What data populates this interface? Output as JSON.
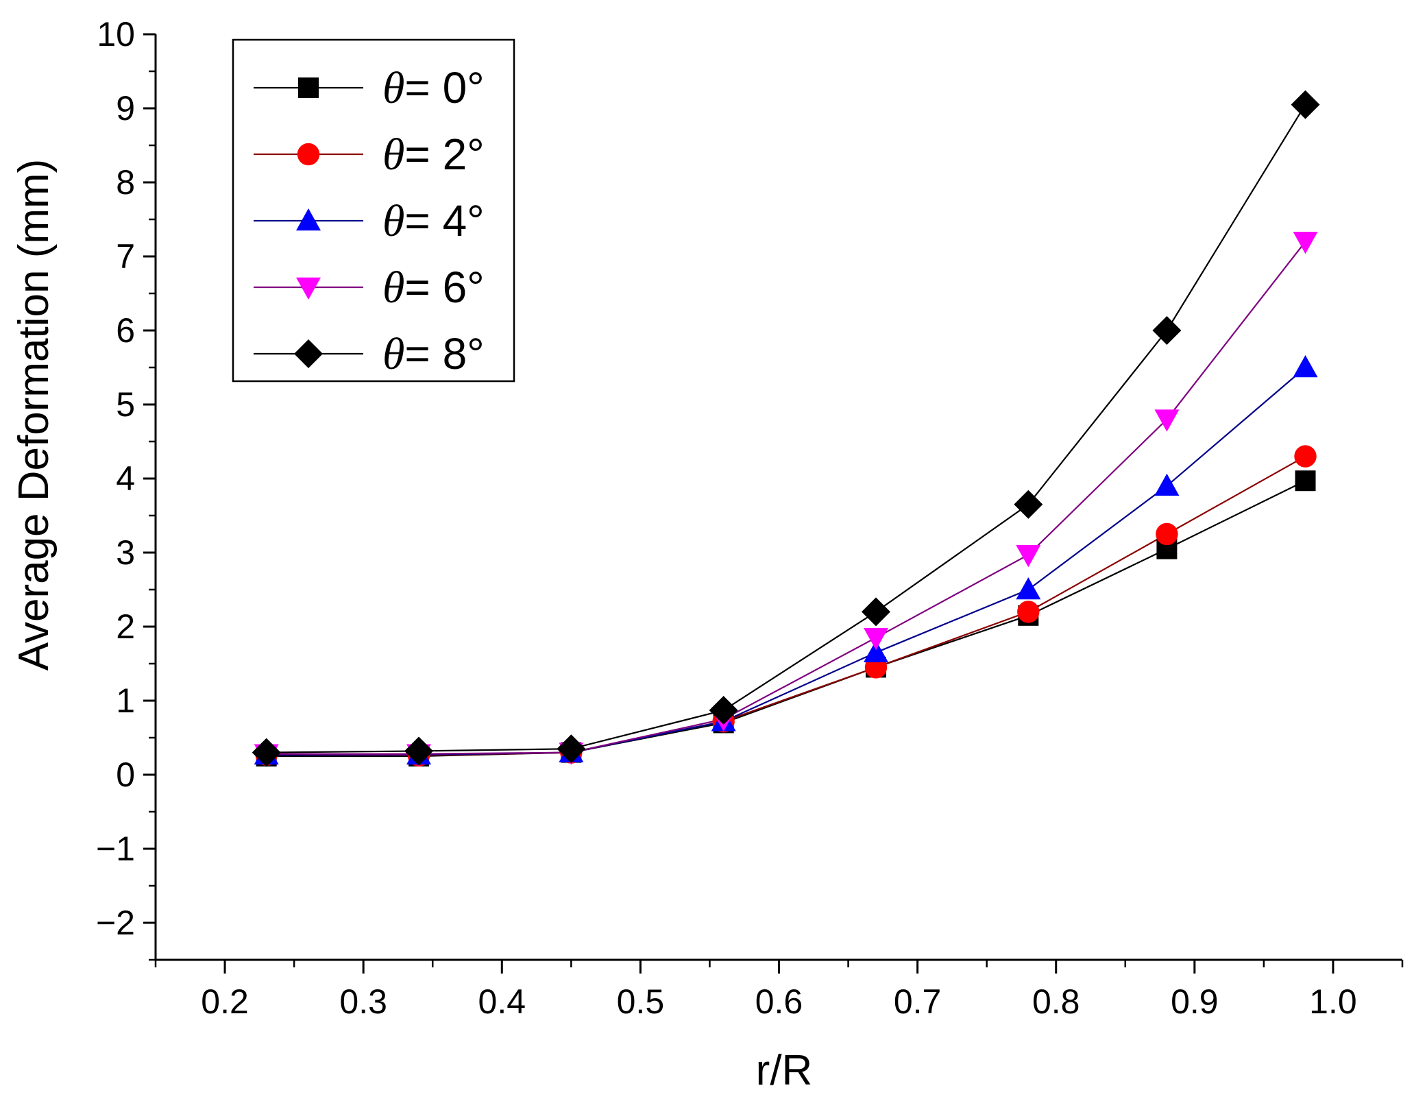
{
  "chart_data": {
    "type": "line",
    "title": "",
    "xlabel": "r/R",
    "ylabel": "Average Deformation (mm)",
    "xlim": [
      0.15,
      1.05
    ],
    "ylim": [
      -2.5,
      10
    ],
    "x_ticks": [
      0.2,
      0.3,
      0.4,
      0.5,
      0.6,
      0.7,
      0.8,
      0.9,
      1.0
    ],
    "x_tick_labels": [
      "0.2",
      "0.3",
      "0.4",
      "0.5",
      "0.6",
      "0.7",
      "0.8",
      "0.9",
      "1.0"
    ],
    "y_ticks": [
      -2,
      -1,
      0,
      1,
      2,
      3,
      4,
      5,
      6,
      7,
      8,
      9,
      10
    ],
    "y_tick_labels": [
      "−2",
      "−1",
      "0",
      "1",
      "2",
      "3",
      "4",
      "5",
      "6",
      "7",
      "8",
      "9",
      "10"
    ],
    "grid": false,
    "legend_position": "top-left",
    "x": [
      0.23,
      0.34,
      0.45,
      0.56,
      0.67,
      0.78,
      0.88,
      0.98
    ],
    "series": [
      {
        "name": "θ= 0°",
        "theta_symbol": "θ",
        "label_rest": "= 0°",
        "marker": "square",
        "color": "#000000",
        "line_color": "#000000",
        "values": [
          0.25,
          0.25,
          0.3,
          0.7,
          1.45,
          2.15,
          3.05,
          3.97
        ]
      },
      {
        "name": "θ= 2°",
        "theta_symbol": "θ",
        "label_rest": "= 2°",
        "marker": "circle",
        "color": "#ff0000",
        "line_color": "#8b0000",
        "values": [
          0.27,
          0.26,
          0.3,
          0.72,
          1.45,
          2.2,
          3.25,
          4.3
        ]
      },
      {
        "name": "θ= 4°",
        "theta_symbol": "θ",
        "label_rest": "= 4°",
        "marker": "triangle-up",
        "color": "#0000ff",
        "line_color": "#00008b",
        "values": [
          0.27,
          0.27,
          0.3,
          0.72,
          1.65,
          2.5,
          3.9,
          5.5
        ]
      },
      {
        "name": "θ= 6°",
        "theta_symbol": "θ",
        "label_rest": "= 6°",
        "marker": "triangle-down",
        "color": "#ff00ff",
        "line_color": "#800080",
        "values": [
          0.28,
          0.28,
          0.3,
          0.75,
          1.85,
          2.97,
          4.8,
          7.2
        ]
      },
      {
        "name": "θ= 8°",
        "theta_symbol": "θ",
        "label_rest": "= 8°",
        "marker": "diamond",
        "color": "#000000",
        "line_color": "#000000",
        "values": [
          0.3,
          0.32,
          0.35,
          0.87,
          2.2,
          3.65,
          6.0,
          9.05
        ]
      }
    ]
  }
}
